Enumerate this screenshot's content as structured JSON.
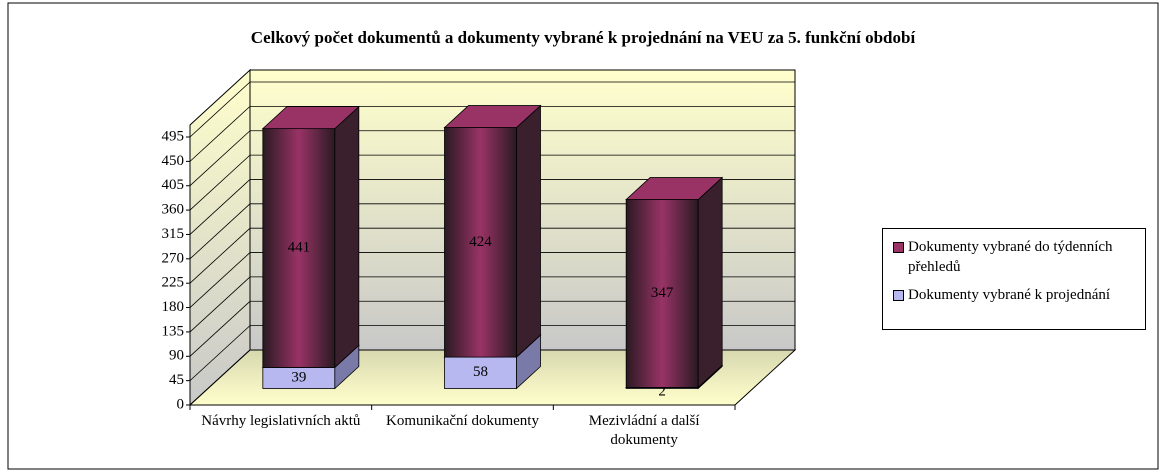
{
  "chart_data": {
    "type": "bar3d_stacked",
    "title": "Celkový počet dokumentů a dokumenty vybrané k projednání na VEU za 5. funkční období",
    "categories": [
      "Návrhy legislativních aktů",
      "Komunikační dokumenty",
      "Mezivládní a další dokumenty"
    ],
    "series": [
      {
        "name": "Dokumenty vybrané k projednání",
        "color": "#b8b8f0",
        "values": [
          39,
          58,
          2
        ]
      },
      {
        "name": "Dokumenty vybrané do týdenních přehledů",
        "color": "#993366",
        "values": [
          441,
          424,
          347
        ]
      }
    ],
    "ylim": [
      0,
      495
    ],
    "yticks": [
      0,
      45,
      90,
      135,
      180,
      225,
      270,
      315,
      360,
      405,
      450,
      495
    ],
    "grid": true,
    "legend": "right"
  }
}
